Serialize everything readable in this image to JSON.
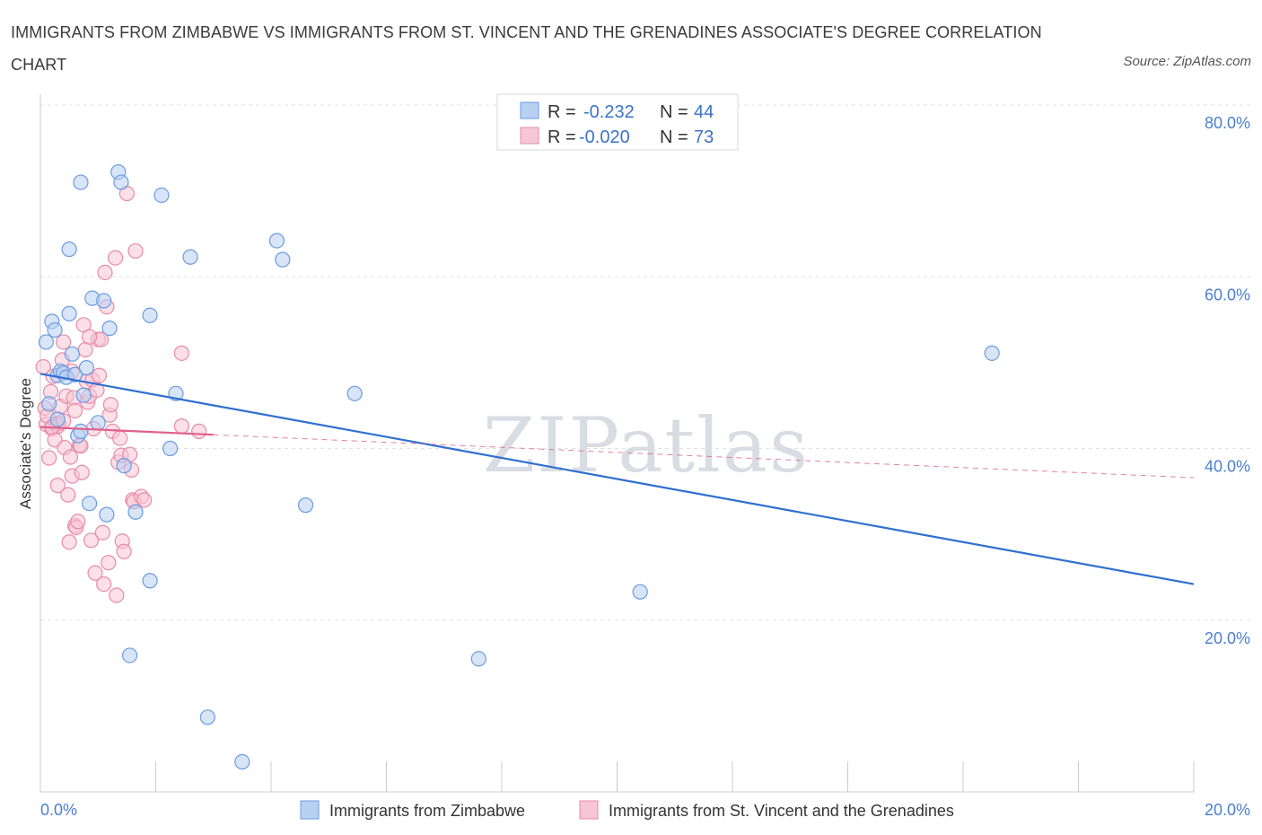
{
  "title": "IMMIGRANTS FROM ZIMBABWE VS IMMIGRANTS FROM ST. VINCENT AND THE GRENADINES ASSOCIATE'S DEGREE CORRELATION CHART",
  "source": "Source: ZipAtlas.com",
  "watermark": "ZIPatlas",
  "legend": {
    "rows": [
      {
        "r_label": "R =",
        "r_value": "-0.232",
        "n_label": "N =",
        "n_value": "44"
      },
      {
        "r_label": "R =",
        "r_value": "-0.020",
        "n_label": "N =",
        "n_value": "73"
      }
    ]
  },
  "colors": {
    "blue_fill": "#b8d0f2",
    "blue_stroke": "#6a9be0",
    "blue_line": "#2f6fd0",
    "pink_fill": "#f7c6d6",
    "pink_stroke": "#e88aa8",
    "pink_line": "#e0608a",
    "grid": "#dde0e6",
    "axis_text": "#4a7fd0"
  },
  "chart_data": {
    "type": "scatter",
    "title": "IMMIGRANTS FROM ZIMBABWE VS IMMIGRANTS FROM ST. VINCENT AND THE GRENADINES ASSOCIATE'S DEGREE CORRELATION CHART",
    "xlabel": "",
    "ylabel": "Associate's Degree",
    "xlim": [
      0,
      20
    ],
    "ylim": [
      0,
      80
    ],
    "x_tick_labels": [
      "0.0%",
      "20.0%"
    ],
    "y_ticks": [
      20,
      40,
      60,
      80
    ],
    "y_tick_labels": [
      "20.0%",
      "40.0%",
      "60.0%",
      "80.0%"
    ],
    "grid": true,
    "legend_position": "top-center",
    "series": [
      {
        "name": "Immigrants from Zimbabwe",
        "color": "blue",
        "R": -0.232,
        "N": 44,
        "trend": {
          "x": [
            0,
            20
          ],
          "y": [
            48.7,
            24.2
          ]
        },
        "points": [
          [
            0.1,
            52.4
          ],
          [
            0.2,
            54.8
          ],
          [
            0.25,
            53.8
          ],
          [
            0.3,
            48.5
          ],
          [
            0.35,
            49.0
          ],
          [
            0.4,
            48.8
          ],
          [
            0.45,
            48.3
          ],
          [
            0.5,
            55.7
          ],
          [
            0.5,
            63.2
          ],
          [
            0.55,
            51.0
          ],
          [
            0.6,
            48.6
          ],
          [
            0.65,
            41.5
          ],
          [
            0.7,
            71.0
          ],
          [
            0.75,
            46.2
          ],
          [
            0.8,
            49.4
          ],
          [
            0.85,
            33.6
          ],
          [
            0.9,
            57.5
          ],
          [
            1.0,
            43.0
          ],
          [
            1.1,
            57.2
          ],
          [
            1.15,
            32.3
          ],
          [
            1.2,
            54.0
          ],
          [
            1.35,
            72.2
          ],
          [
            1.4,
            71.0
          ],
          [
            1.45,
            38.0
          ],
          [
            1.65,
            32.6
          ],
          [
            1.9,
            55.5
          ],
          [
            1.9,
            24.6
          ],
          [
            1.55,
            15.9
          ],
          [
            2.1,
            69.5
          ],
          [
            2.25,
            40.0
          ],
          [
            2.35,
            46.4
          ],
          [
            2.6,
            62.3
          ],
          [
            2.9,
            8.7
          ],
          [
            3.5,
            3.5
          ],
          [
            4.1,
            64.2
          ],
          [
            4.2,
            62.0
          ],
          [
            4.6,
            33.4
          ],
          [
            5.45,
            46.4
          ],
          [
            7.6,
            15.5
          ],
          [
            10.4,
            23.3
          ],
          [
            16.5,
            51.1
          ],
          [
            0.15,
            45.2
          ],
          [
            0.3,
            43.4
          ],
          [
            0.7,
            42.0
          ]
        ]
      },
      {
        "name": "Immigrants from St. Vincent and the Grenadines",
        "color": "pink",
        "R": -0.02,
        "N": 73,
        "trend": {
          "x": [
            0,
            3.0
          ],
          "y": [
            42.5,
            41.6
          ]
        },
        "trend_dashed": {
          "x": [
            3.0,
            20
          ],
          "y": [
            41.6,
            36.6
          ]
        },
        "points": [
          [
            0.05,
            49.5
          ],
          [
            0.08,
            44.7
          ],
          [
            0.1,
            42.8
          ],
          [
            0.12,
            43.8
          ],
          [
            0.15,
            38.9
          ],
          [
            0.18,
            46.6
          ],
          [
            0.2,
            42.3
          ],
          [
            0.22,
            48.4
          ],
          [
            0.25,
            41.0
          ],
          [
            0.28,
            42.9
          ],
          [
            0.3,
            35.7
          ],
          [
            0.32,
            42.9
          ],
          [
            0.35,
            44.9
          ],
          [
            0.38,
            50.3
          ],
          [
            0.4,
            52.4
          ],
          [
            0.42,
            40.1
          ],
          [
            0.45,
            46.1
          ],
          [
            0.48,
            34.6
          ],
          [
            0.5,
            29.1
          ],
          [
            0.52,
            39.0
          ],
          [
            0.55,
            36.8
          ],
          [
            0.58,
            45.9
          ],
          [
            0.6,
            31.0
          ],
          [
            0.62,
            30.8
          ],
          [
            0.65,
            31.5
          ],
          [
            0.68,
            40.4
          ],
          [
            0.7,
            40.3
          ],
          [
            0.72,
            37.2
          ],
          [
            0.75,
            54.4
          ],
          [
            0.78,
            51.5
          ],
          [
            0.8,
            47.8
          ],
          [
            0.82,
            45.4
          ],
          [
            0.85,
            46.1
          ],
          [
            0.88,
            29.3
          ],
          [
            0.9,
            48.0
          ],
          [
            0.92,
            42.3
          ],
          [
            0.95,
            25.5
          ],
          [
            0.98,
            46.8
          ],
          [
            1.0,
            52.7
          ],
          [
            1.02,
            48.5
          ],
          [
            1.05,
            52.7
          ],
          [
            1.08,
            30.2
          ],
          [
            1.1,
            24.2
          ],
          [
            1.12,
            60.5
          ],
          [
            1.15,
            56.5
          ],
          [
            1.18,
            26.7
          ],
          [
            1.2,
            43.9
          ],
          [
            1.22,
            45.1
          ],
          [
            1.25,
            42.0
          ],
          [
            1.3,
            62.2
          ],
          [
            1.32,
            22.9
          ],
          [
            1.35,
            38.4
          ],
          [
            1.38,
            41.2
          ],
          [
            1.4,
            39.2
          ],
          [
            1.42,
            29.2
          ],
          [
            1.45,
            28.0
          ],
          [
            1.5,
            69.7
          ],
          [
            1.55,
            39.3
          ],
          [
            1.58,
            37.5
          ],
          [
            1.6,
            34.0
          ],
          [
            1.62,
            33.8
          ],
          [
            1.65,
            63.0
          ],
          [
            1.75,
            34.4
          ],
          [
            1.8,
            34.0
          ],
          [
            2.45,
            51.1
          ],
          [
            2.45,
            42.6
          ],
          [
            2.75,
            42.0
          ],
          [
            0.3,
            42.6
          ],
          [
            0.55,
            49.0
          ],
          [
            0.6,
            44.4
          ],
          [
            0.2,
            42.5
          ],
          [
            0.4,
            43.2
          ],
          [
            0.85,
            53.0
          ]
        ]
      }
    ]
  }
}
